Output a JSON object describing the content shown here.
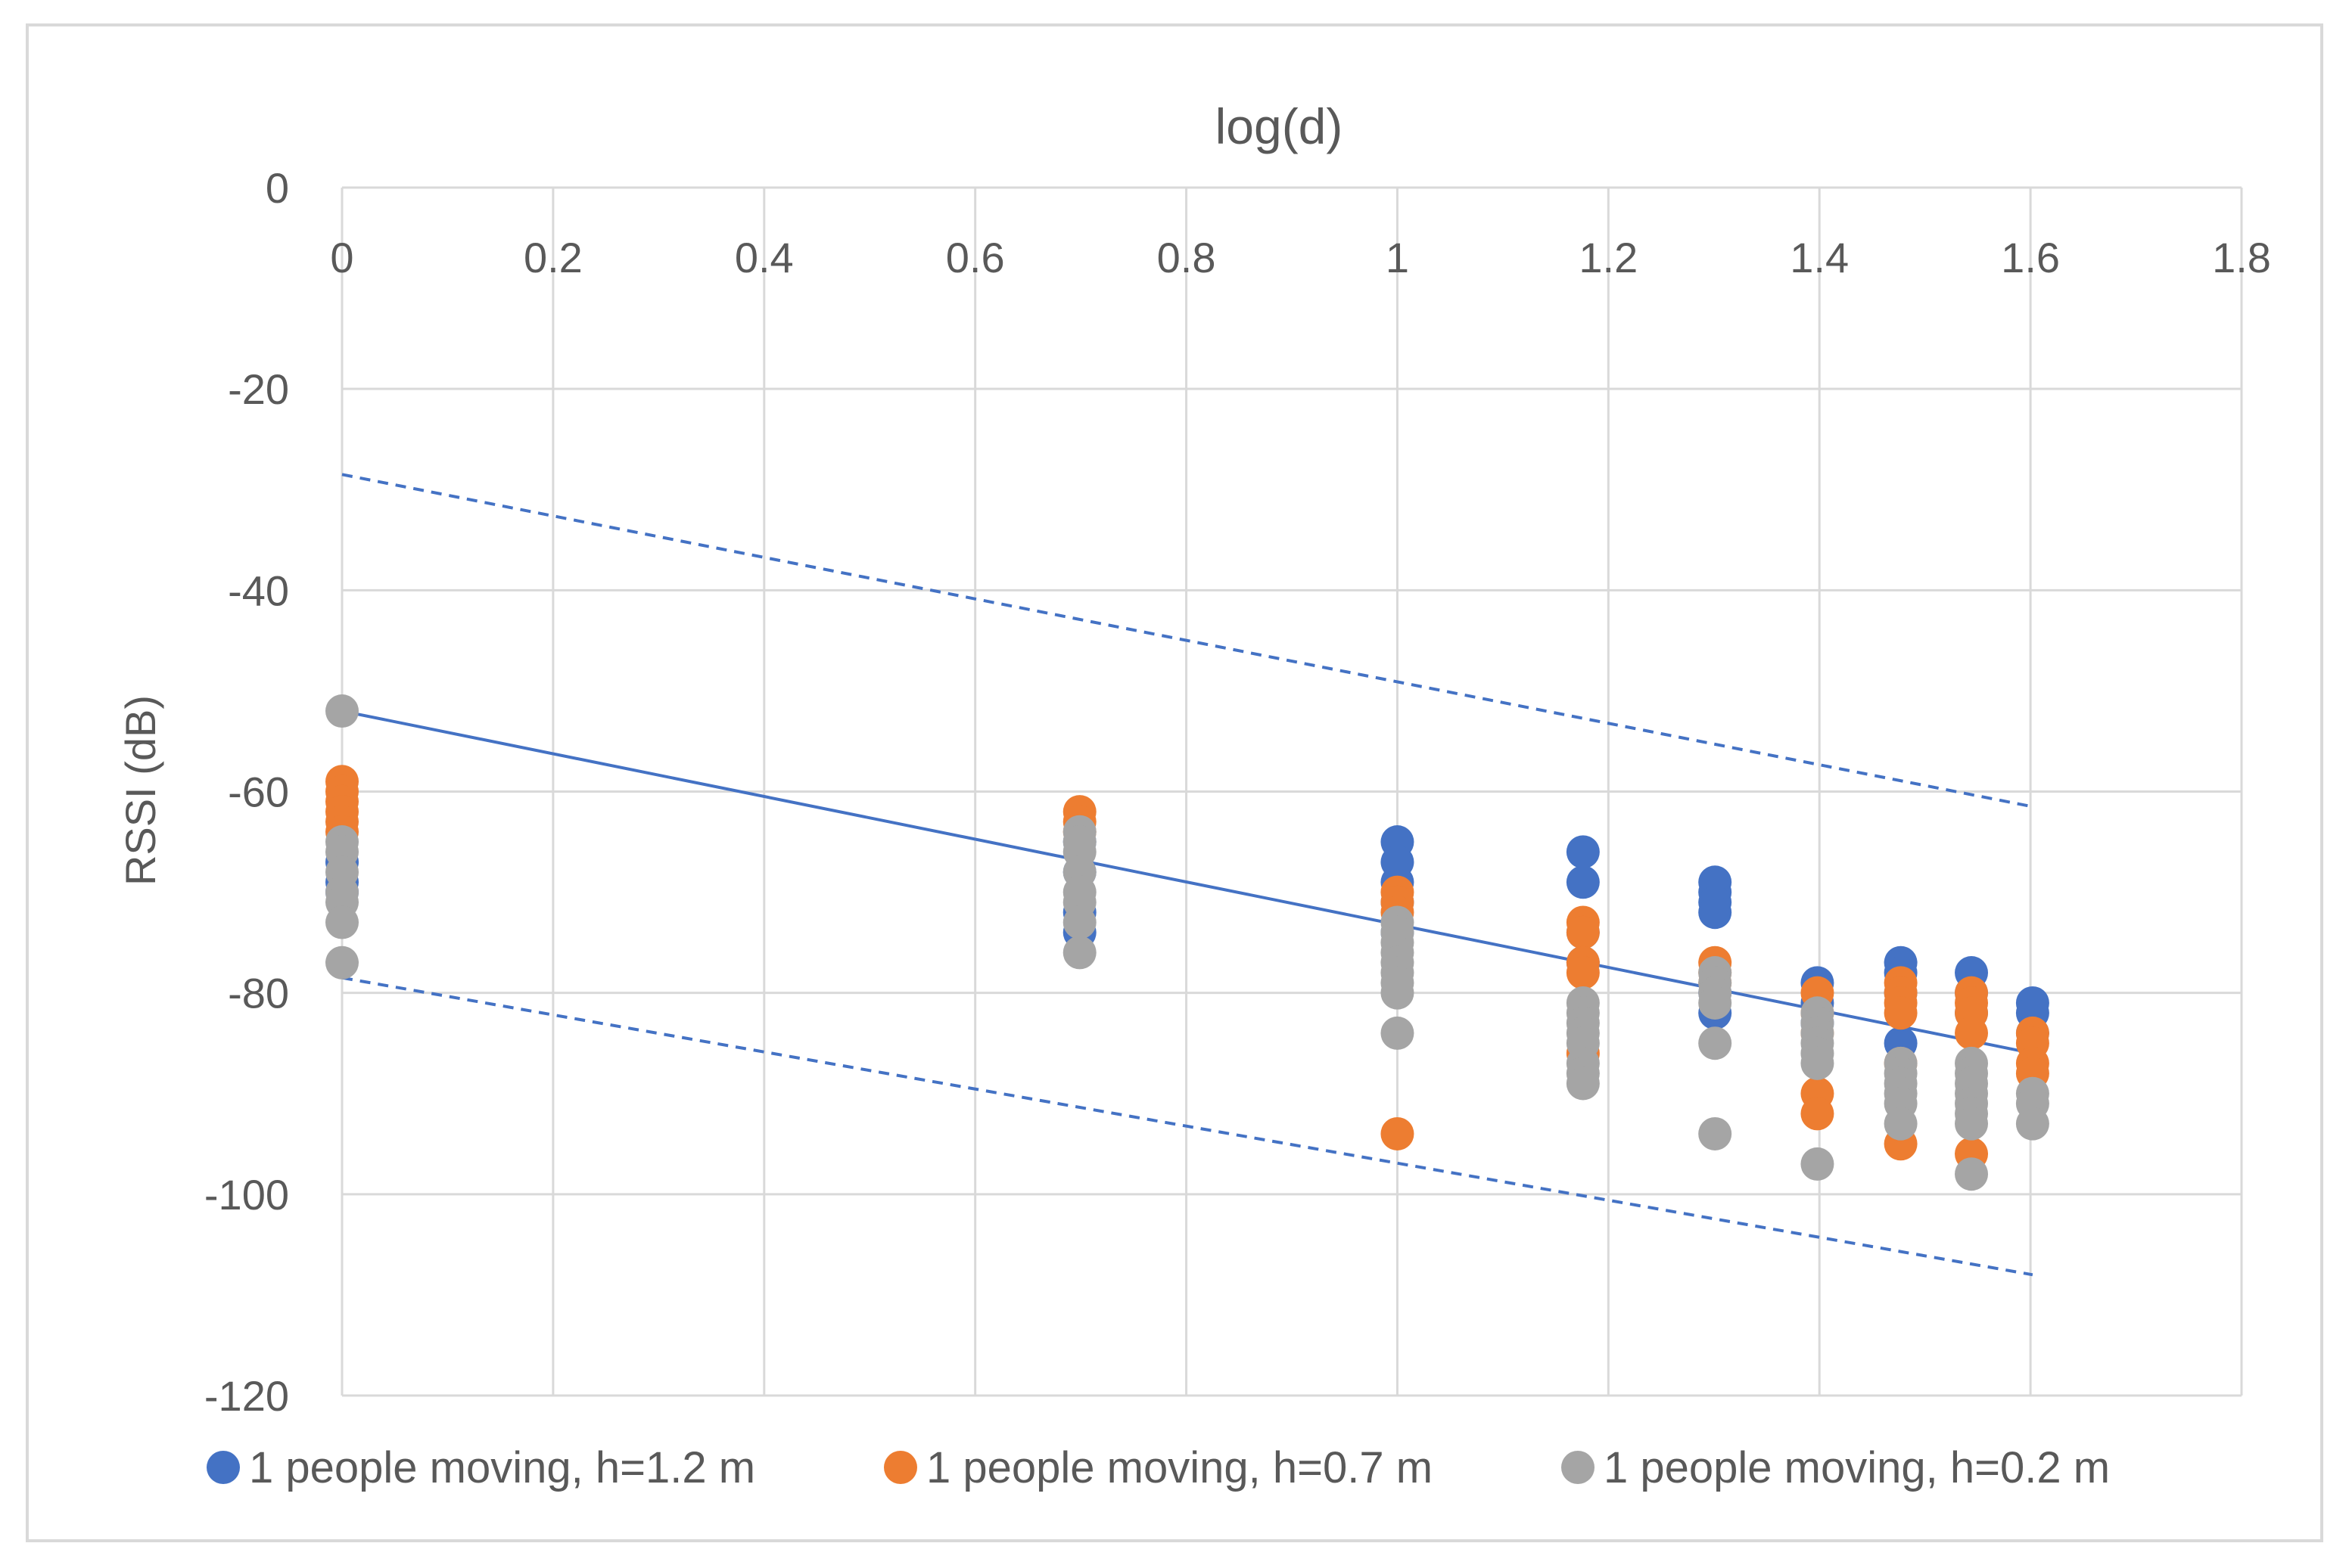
{
  "chart_data": {
    "type": "scatter",
    "title": "log(d)",
    "xlabel": "",
    "ylabel": "RSSI (dB)",
    "xlim": [
      0,
      1.8
    ],
    "ylim": [
      -120,
      0
    ],
    "x_axis_position": "top",
    "x_ticks": [
      0,
      0.2,
      0.4,
      0.6,
      0.8,
      1,
      1.2,
      1.4,
      1.6,
      1.8
    ],
    "x_tick_labels": [
      "0",
      "0.2",
      "0.4",
      "0.6",
      "0.8",
      "1",
      "1.2",
      "1.4",
      "1.6",
      "1.8"
    ],
    "y_ticks": [
      0,
      -20,
      -40,
      -60,
      -80,
      -100,
      -120
    ],
    "y_tick_labels": [
      "0",
      "-20",
      "-40",
      "-60",
      "-80",
      "-100",
      "-120"
    ],
    "grid": true,
    "legend_position": "bottom",
    "series": [
      {
        "name": "1 people moving, h=1.2 m",
        "color": "#4472C4",
        "points": [
          [
            0,
            -67
          ],
          [
            0,
            -69
          ],
          [
            0,
            -70
          ],
          [
            0.699,
            -65
          ],
          [
            0.699,
            -68
          ],
          [
            0.699,
            -72
          ],
          [
            0.699,
            -74
          ],
          [
            1,
            -65
          ],
          [
            1,
            -67
          ],
          [
            1,
            -69
          ],
          [
            1,
            -71
          ],
          [
            1,
            -74
          ],
          [
            1.176,
            -66
          ],
          [
            1.176,
            -69
          ],
          [
            1.176,
            -74
          ],
          [
            1.176,
            -77
          ],
          [
            1.301,
            -69
          ],
          [
            1.301,
            -70
          ],
          [
            1.301,
            -71
          ],
          [
            1.301,
            -72
          ],
          [
            1.301,
            -80
          ],
          [
            1.301,
            -82
          ],
          [
            1.398,
            -79
          ],
          [
            1.398,
            -81
          ],
          [
            1.398,
            -83
          ],
          [
            1.477,
            -77
          ],
          [
            1.477,
            -78
          ],
          [
            1.477,
            -80
          ],
          [
            1.477,
            -85
          ],
          [
            1.544,
            -78
          ],
          [
            1.544,
            -80
          ],
          [
            1.544,
            -82
          ],
          [
            1.602,
            -81
          ],
          [
            1.602,
            -82
          ],
          [
            1.602,
            -84
          ]
        ]
      },
      {
        "name": "1 people moving, h=0.7 m",
        "color": "#ED7D31",
        "points": [
          [
            0,
            -59
          ],
          [
            0,
            -60
          ],
          [
            0,
            -61
          ],
          [
            0,
            -62
          ],
          [
            0,
            -63
          ],
          [
            0,
            -64
          ],
          [
            0.699,
            -62
          ],
          [
            0.699,
            -63
          ],
          [
            0.699,
            -64
          ],
          [
            1,
            -70
          ],
          [
            1,
            -71
          ],
          [
            1,
            -72
          ],
          [
            1,
            -94
          ],
          [
            1.176,
            -73
          ],
          [
            1.176,
            -74
          ],
          [
            1.176,
            -77
          ],
          [
            1.176,
            -78
          ],
          [
            1.176,
            -86
          ],
          [
            1.301,
            -77
          ],
          [
            1.301,
            -78
          ],
          [
            1.301,
            -79
          ],
          [
            1.398,
            -80
          ],
          [
            1.398,
            -82
          ],
          [
            1.398,
            -84
          ],
          [
            1.398,
            -90
          ],
          [
            1.398,
            -92
          ],
          [
            1.477,
            -79
          ],
          [
            1.477,
            -80
          ],
          [
            1.477,
            -81
          ],
          [
            1.477,
            -82
          ],
          [
            1.477,
            -87
          ],
          [
            1.477,
            -95
          ],
          [
            1.544,
            -80
          ],
          [
            1.544,
            -81
          ],
          [
            1.544,
            -82
          ],
          [
            1.544,
            -84
          ],
          [
            1.544,
            -96
          ],
          [
            1.602,
            -84
          ],
          [
            1.602,
            -85
          ],
          [
            1.602,
            -87
          ],
          [
            1.602,
            -88
          ]
        ]
      },
      {
        "name": "1 people moving, h=0.2 m",
        "color": "#A5A5A5",
        "points": [
          [
            0,
            -52
          ],
          [
            0,
            -65
          ],
          [
            0,
            -66
          ],
          [
            0,
            -68
          ],
          [
            0,
            -70
          ],
          [
            0,
            -71
          ],
          [
            0,
            -73
          ],
          [
            0,
            -77
          ],
          [
            0.699,
            -64
          ],
          [
            0.699,
            -65
          ],
          [
            0.699,
            -66
          ],
          [
            0.699,
            -68
          ],
          [
            0.699,
            -70
          ],
          [
            0.699,
            -71
          ],
          [
            0.699,
            -73
          ],
          [
            0.699,
            -76
          ],
          [
            1,
            -73
          ],
          [
            1,
            -74
          ],
          [
            1,
            -75
          ],
          [
            1,
            -76
          ],
          [
            1,
            -77
          ],
          [
            1,
            -78
          ],
          [
            1,
            -79
          ],
          [
            1,
            -80
          ],
          [
            1,
            -84
          ],
          [
            1.176,
            -81
          ],
          [
            1.176,
            -82
          ],
          [
            1.176,
            -83
          ],
          [
            1.176,
            -84
          ],
          [
            1.176,
            -85
          ],
          [
            1.176,
            -87
          ],
          [
            1.176,
            -88
          ],
          [
            1.176,
            -89
          ],
          [
            1.301,
            -78
          ],
          [
            1.301,
            -79
          ],
          [
            1.301,
            -80
          ],
          [
            1.301,
            -81
          ],
          [
            1.301,
            -85
          ],
          [
            1.301,
            -94
          ],
          [
            1.398,
            -82
          ],
          [
            1.398,
            -83
          ],
          [
            1.398,
            -84
          ],
          [
            1.398,
            -85
          ],
          [
            1.398,
            -86
          ],
          [
            1.398,
            -87
          ],
          [
            1.398,
            -97
          ],
          [
            1.477,
            -87
          ],
          [
            1.477,
            -88
          ],
          [
            1.477,
            -89
          ],
          [
            1.477,
            -90
          ],
          [
            1.477,
            -91
          ],
          [
            1.477,
            -93
          ],
          [
            1.544,
            -87
          ],
          [
            1.544,
            -88
          ],
          [
            1.544,
            -89
          ],
          [
            1.544,
            -90
          ],
          [
            1.544,
            -91
          ],
          [
            1.544,
            -92
          ],
          [
            1.544,
            -93
          ],
          [
            1.544,
            -98
          ],
          [
            1.602,
            -90
          ],
          [
            1.602,
            -91
          ],
          [
            1.602,
            -93
          ]
        ]
      }
    ],
    "lines": [
      {
        "name": "trend",
        "style": "solid",
        "color": "#4472C4",
        "x": [
          0,
          1.602
        ],
        "y": [
          -52,
          -86
        ]
      },
      {
        "name": "upper-bound",
        "style": "dashed",
        "color": "#4472C4",
        "x": [
          0,
          1.602
        ],
        "y": [
          -28.5,
          -61.5
        ]
      },
      {
        "name": "lower-bound",
        "style": "dashed",
        "color": "#4472C4",
        "x": [
          0,
          1.602
        ],
        "y": [
          -78.5,
          -108
        ]
      }
    ]
  }
}
